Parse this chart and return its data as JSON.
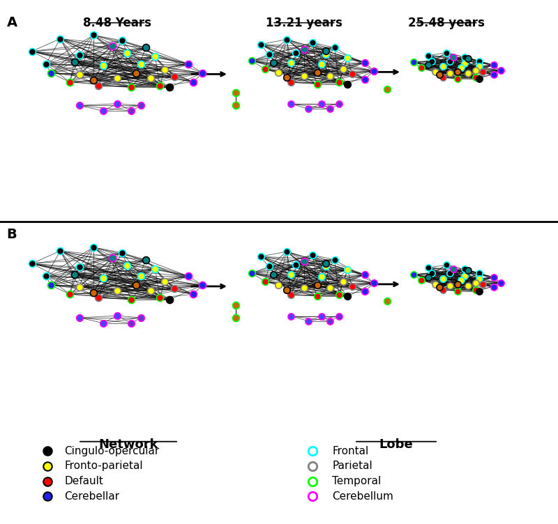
{
  "panel_A_label": "A",
  "panel_B_label": "B",
  "age_labels": [
    "8.48 Years",
    "13.21 years",
    "25.48 years"
  ],
  "network_legend_items": [
    {
      "label": "Cingulo-opercular",
      "facecolor": "black",
      "edgecolor": "black"
    },
    {
      "label": "Fronto-parietal",
      "facecolor": "yellow",
      "edgecolor": "black"
    },
    {
      "label": "Default",
      "facecolor": "red",
      "edgecolor": "black"
    },
    {
      "label": "Cerebellar",
      "facecolor": "#2222ee",
      "edgecolor": "black"
    }
  ],
  "lobe_legend_items": [
    {
      "label": "Frontal",
      "facecolor": "white",
      "edgecolor": "cyan"
    },
    {
      "label": "Parietal",
      "facecolor": "white",
      "edgecolor": "gray"
    },
    {
      "label": "Temporal",
      "facecolor": "white",
      "edgecolor": "lime"
    },
    {
      "label": "Cerebellum",
      "facecolor": "white",
      "edgecolor": "magenta"
    }
  ],
  "node_colors_main": [
    "black",
    "black",
    "black",
    "black",
    "black",
    "black",
    "yellow",
    "yellow",
    "yellow",
    "yellow",
    "yellow",
    "yellow",
    "yellow",
    "yellow",
    "red",
    "red",
    "red",
    "red",
    "red",
    "#2222ee",
    "#2222ee",
    "#2222ee",
    "#2222ee",
    "#008080",
    "#008080",
    "#008080",
    "#cc6600",
    "#cc6600",
    "black"
  ],
  "node_outline_main": [
    "cyan",
    "cyan",
    "cyan",
    "cyan",
    "cyan",
    "cyan",
    "cyan",
    "cyan",
    "cyan",
    "cyan",
    "gray",
    "gray",
    "gray",
    "gray",
    "gray",
    "gray",
    "lime",
    "lime",
    "lime",
    "lime",
    "magenta",
    "magenta",
    "magenta",
    "magenta",
    "black",
    "black",
    "black",
    "black",
    "black"
  ],
  "node_colors_cer": [
    "#4444ff",
    "#4444ff",
    "#4444ff",
    "#6633cc",
    "#6633cc"
  ],
  "node_outline_cer": [
    "magenta",
    "magenta",
    "magenta",
    "magenta",
    "magenta"
  ],
  "cyan_color": "cyan",
  "red_color": "#FF6666",
  "blob_alpha": 0.3,
  "separator_color": "black",
  "arrow_color": "black"
}
